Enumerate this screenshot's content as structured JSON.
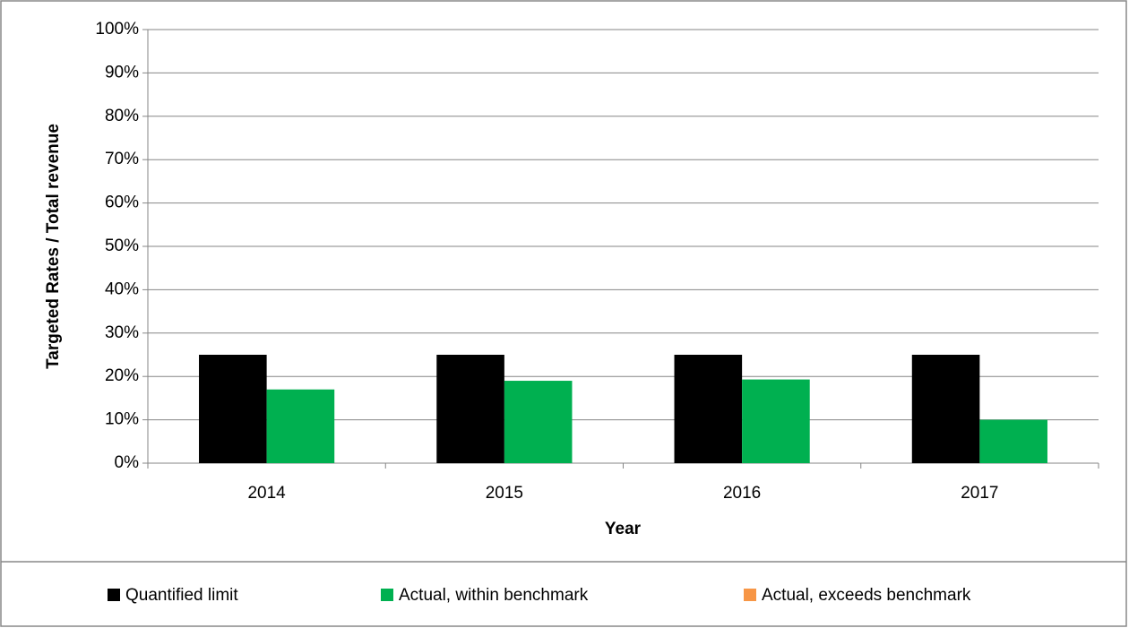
{
  "chart_data": {
    "type": "bar",
    "x_label": "Year",
    "y_label": "Targeted Rates / Total revenue",
    "categories": [
      "2014",
      "2015",
      "2016",
      "2017"
    ],
    "series": [
      {
        "name": "Quantified limit",
        "color": "#000000",
        "values": [
          25,
          25,
          25,
          25
        ]
      },
      {
        "name": "Actual, within benchmark",
        "color": "#00b050",
        "values": [
          17,
          19,
          19.3,
          10
        ]
      },
      {
        "name": "Actual, exceeds benchmark",
        "color": "#f79646",
        "values": [
          null,
          null,
          null,
          null
        ]
      }
    ],
    "ylim": [
      0,
      100
    ],
    "yticks": [
      {
        "value": 0,
        "label": "0%"
      },
      {
        "value": 10,
        "label": "10%"
      },
      {
        "value": 20,
        "label": "20%"
      },
      {
        "value": 30,
        "label": "30%"
      },
      {
        "value": 40,
        "label": "40%"
      },
      {
        "value": 50,
        "label": "50%"
      },
      {
        "value": 60,
        "label": "60%"
      },
      {
        "value": 70,
        "label": "70%"
      },
      {
        "value": 80,
        "label": "80%"
      },
      {
        "value": 90,
        "label": "90%"
      },
      {
        "value": 100,
        "label": "100%"
      }
    ],
    "grid": true,
    "legend": "bottom"
  }
}
